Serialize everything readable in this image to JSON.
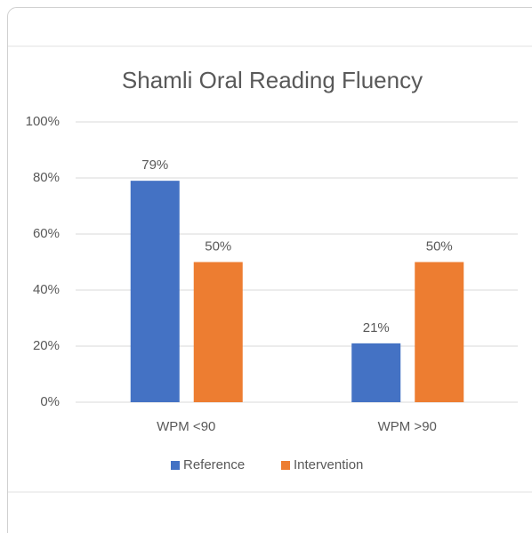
{
  "chart_data": {
    "type": "bar",
    "title": "Shamli Oral Reading Fluency",
    "categories": [
      "WPM <90",
      "WPM >90"
    ],
    "series": [
      {
        "name": "Reference",
        "color": "#4472c4",
        "values": [
          79,
          21
        ],
        "value_labels": [
          "79%",
          "21%"
        ]
      },
      {
        "name": "Intervention",
        "color": "#ed7d31",
        "values": [
          50,
          50
        ],
        "value_labels": [
          "50%",
          "50%"
        ]
      }
    ],
    "ylim": [
      0,
      100
    ],
    "yticks": [
      {
        "value": 0,
        "label": "0%"
      },
      {
        "value": 20,
        "label": "20%"
      },
      {
        "value": 40,
        "label": "40%"
      },
      {
        "value": 60,
        "label": "60%"
      },
      {
        "value": 80,
        "label": "80%"
      },
      {
        "value": 100,
        "label": "100%"
      }
    ],
    "grid": true,
    "legend": "bottom"
  }
}
